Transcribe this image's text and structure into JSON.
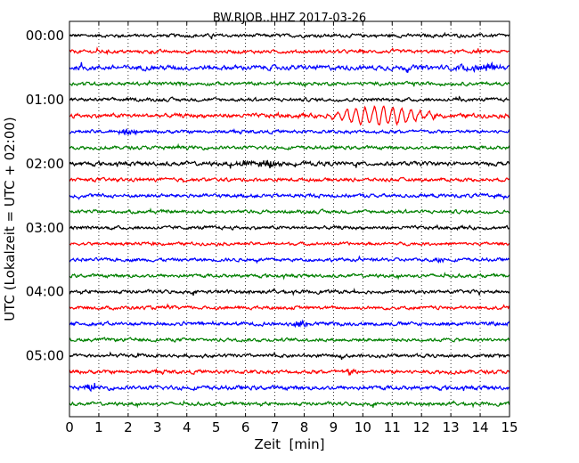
{
  "chart_data": {
    "type": "line",
    "title": "BW.RJOB..HHZ 2017-03-26",
    "xlabel": "Zeit  [min]",
    "ylabel": "UTC (Lokalzeit = UTC + 02:00)",
    "xlim": [
      0,
      15
    ],
    "x_ticks": [
      "0",
      "1",
      "2",
      "3",
      "4",
      "5",
      "6",
      "7",
      "8",
      "9",
      "10",
      "11",
      "12",
      "13",
      "14",
      "15"
    ],
    "y_tick_labels": [
      "00:00",
      "01:00",
      "02:00",
      "03:00",
      "04:00",
      "05:00"
    ],
    "trace_interval_min": 15,
    "grid": "vertical dotted",
    "colors": [
      "#000000",
      "#ff0000",
      "#0000ff",
      "#008000"
    ],
    "traces": [
      {
        "start": "00:00",
        "amplitude": 0.1
      },
      {
        "start": "00:15",
        "amplitude": 0.1
      },
      {
        "start": "00:30",
        "amplitude": 0.14,
        "event": {
          "t": [
            13.0,
            15.0
          ],
          "amp": 0.25
        }
      },
      {
        "start": "00:45",
        "amplitude": 0.1
      },
      {
        "start": "01:00",
        "amplitude": 0.1,
        "event": {
          "t": [
            13.0,
            13.6
          ],
          "amp": 0.22
        }
      },
      {
        "start": "01:15",
        "amplitude": 0.12,
        "event": {
          "t": [
            8.7,
            12.8
          ],
          "amp": 0.8,
          "peak": 10.6
        }
      },
      {
        "start": "01:30",
        "amplitude": 0.1,
        "event": {
          "t": [
            1.5,
            2.4
          ],
          "amp": 0.22
        }
      },
      {
        "start": "01:45",
        "amplitude": 0.1
      },
      {
        "start": "02:00",
        "amplitude": 0.12,
        "event": {
          "t": [
            5.4,
            7.6
          ],
          "amp": 0.25
        }
      },
      {
        "start": "02:15",
        "amplitude": 0.1
      },
      {
        "start": "02:30",
        "amplitude": 0.11
      },
      {
        "start": "02:45",
        "amplitude": 0.1
      },
      {
        "start": "03:00",
        "amplitude": 0.1
      },
      {
        "start": "03:15",
        "amplitude": 0.09
      },
      {
        "start": "03:30",
        "amplitude": 0.1,
        "event": {
          "t": [
            12.4,
            12.8
          ],
          "amp": 0.25
        }
      },
      {
        "start": "03:45",
        "amplitude": 0.1
      },
      {
        "start": "04:00",
        "amplitude": 0.1
      },
      {
        "start": "04:15",
        "amplitude": 0.1
      },
      {
        "start": "04:30",
        "amplitude": 0.11,
        "event": {
          "t": [
            7.6,
            8.2
          ],
          "amp": 0.3
        }
      },
      {
        "start": "04:45",
        "amplitude": 0.1
      },
      {
        "start": "05:00",
        "amplitude": 0.1
      },
      {
        "start": "05:15",
        "amplitude": 0.11,
        "event": {
          "t": [
            9.3,
            9.8
          ],
          "amp": 0.25
        }
      },
      {
        "start": "05:30",
        "amplitude": 0.12,
        "event": {
          "t": [
            0.4,
            1.0
          ],
          "amp": 0.28
        }
      },
      {
        "start": "05:45",
        "amplitude": 0.1
      }
    ]
  }
}
